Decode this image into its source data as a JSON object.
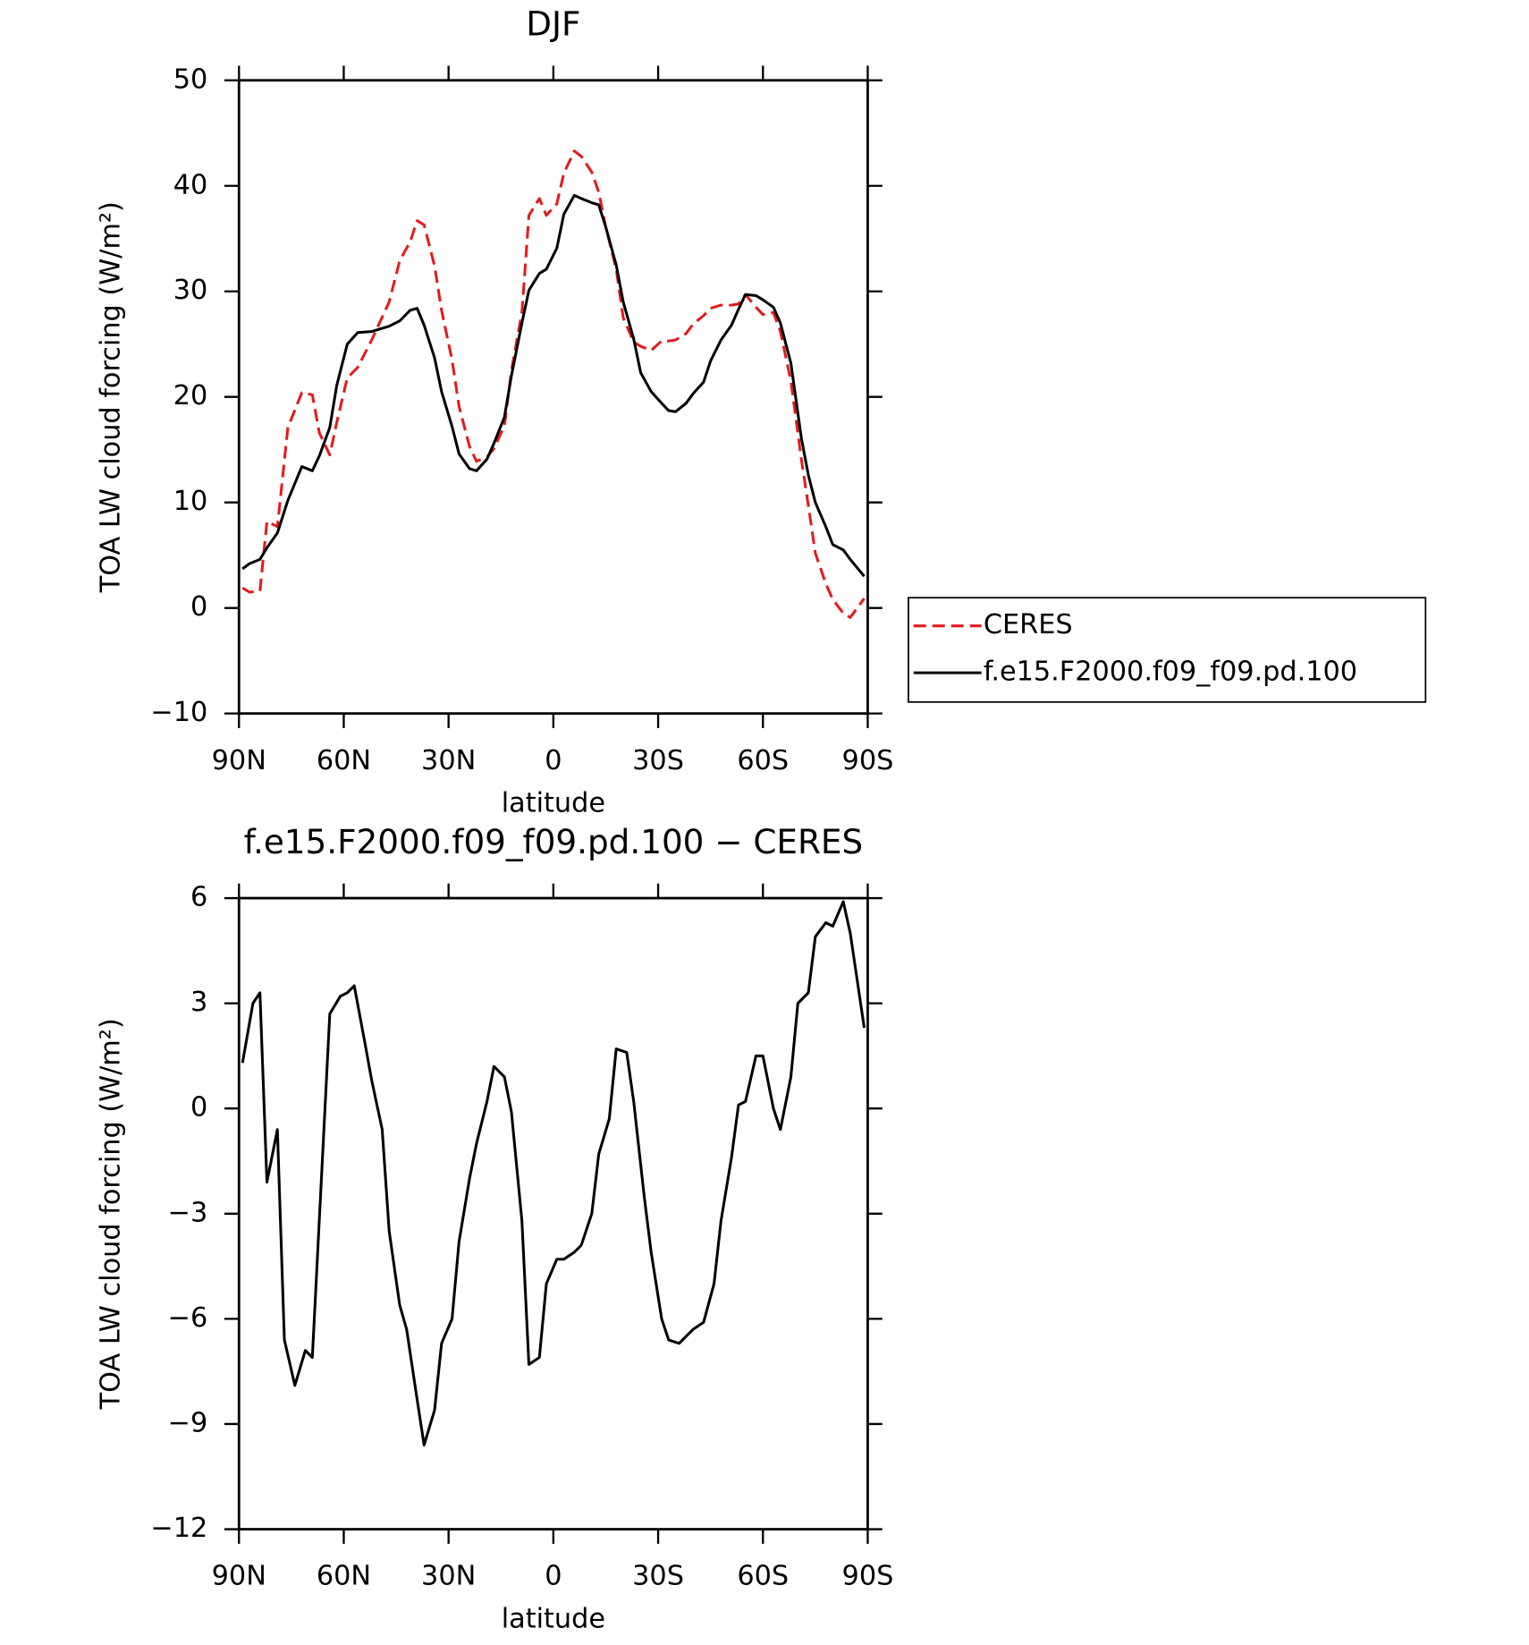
{
  "chart_data": [
    {
      "type": "line",
      "title": "DJF",
      "xlabel": "latitude",
      "ylabel": "TOA LW cloud forcing (W/m²)",
      "x": [
        89,
        87,
        84,
        82,
        79,
        76,
        72,
        69,
        67,
        64,
        62,
        59,
        56,
        52,
        47,
        44,
        41,
        39,
        37,
        34,
        32,
        29,
        27,
        24,
        22,
        19,
        17,
        14,
        12,
        9,
        7,
        4,
        2,
        -1,
        -3,
        -6,
        -8,
        -11,
        -13,
        -15,
        -18,
        -20,
        -23,
        -25,
        -28,
        -31,
        -33,
        -35,
        -38,
        -40,
        -43,
        -45,
        -48,
        -51,
        -53,
        -55,
        -58,
        -60,
        -63,
        -65,
        -68,
        -71,
        -73,
        -75,
        -78,
        -80,
        -83,
        -85,
        -89
      ],
      "series": [
        {
          "name": "CERES",
          "color": "#e41a1c",
          "dash": "dashed",
          "values": [
            1.9,
            1.5,
            1.6,
            8.2,
            7.7,
            17.1,
            20.4,
            20.2,
            16.6,
            14.5,
            17.6,
            21.8,
            22.8,
            25.4,
            29.0,
            32.9,
            34.7,
            36.7,
            36.3,
            32.4,
            28.2,
            23.5,
            19.1,
            15.3,
            13.9,
            14.3,
            15.1,
            17.3,
            22.5,
            28.0,
            37.2,
            38.8,
            37.2,
            38.3,
            41.2,
            43.3,
            42.8,
            41.3,
            39.4,
            36.1,
            32.1,
            27.5,
            25.2,
            24.8,
            24.4,
            25.3,
            25.3,
            25.4,
            26.0,
            26.9,
            27.7,
            28.4,
            28.7,
            28.7,
            28.8,
            29.7,
            28.5,
            27.8,
            28.0,
            26.2,
            21.5,
            14.1,
            9.7,
            5.2,
            2.3,
            0.8,
            -0.5,
            -0.9,
            0.9
          ]
        },
        {
          "name": "f.e15.F2000.f09_f09.pd.100",
          "color": "#000000",
          "dash": "solid",
          "values": [
            3.7,
            4.2,
            4.6,
            5.7,
            7.1,
            10.2,
            13.4,
            13.0,
            14.4,
            17.1,
            21.1,
            25.0,
            26.1,
            26.2,
            26.7,
            27.2,
            28.2,
            28.4,
            26.8,
            23.7,
            20.5,
            17.2,
            14.6,
            13.2,
            13.0,
            14.1,
            15.6,
            18.1,
            22.0,
            27.0,
            30.1,
            31.7,
            32.1,
            34.1,
            37.3,
            39.1,
            38.8,
            38.4,
            38.2,
            36.1,
            32.5,
            29.0,
            25.5,
            22.3,
            20.5,
            19.4,
            18.7,
            18.6,
            19.4,
            20.3,
            21.4,
            23.4,
            25.4,
            26.8,
            28.3,
            29.7,
            29.6,
            29.2,
            28.5,
            27.0,
            23.2,
            16.1,
            12.6,
            10.0,
            7.7,
            6.0,
            5.5,
            4.6,
            3.0
          ]
        }
      ],
      "xlim": [
        90,
        -90
      ],
      "xticks": [
        {
          "value": 90,
          "label": "90N"
        },
        {
          "value": 60,
          "label": "60N"
        },
        {
          "value": 30,
          "label": "30N"
        },
        0,
        {
          "value": -30,
          "label": "30S"
        },
        {
          "value": -60,
          "label": "60S"
        },
        {
          "value": -90,
          "label": "90S"
        }
      ],
      "ylim": [
        -10,
        50
      ],
      "yticks": [
        {
          "value": -10,
          "label": "−10"
        },
        0,
        10,
        20,
        30,
        40,
        50
      ],
      "legend": "right"
    },
    {
      "type": "line",
      "title": "f.e15.F2000.f09_f09.pd.100 − CERES",
      "xlabel": "latitude",
      "ylabel": "TOA LW cloud forcing (W/m²)",
      "x": [
        89,
        86,
        84,
        82,
        79,
        77,
        74,
        71,
        69,
        64,
        61,
        59,
        57,
        54,
        52,
        49,
        47,
        44,
        42,
        39,
        37,
        34,
        32,
        29,
        27,
        24,
        22,
        19,
        17,
        14,
        12,
        9,
        7,
        4,
        2,
        -1,
        -3,
        -6,
        -8,
        -11,
        -13,
        -16,
        -18,
        -21,
        -23,
        -26,
        -28,
        -31,
        -33,
        -36,
        -38,
        -40,
        -43,
        -46,
        -48,
        -51,
        -53,
        -55,
        -58,
        -60,
        -63,
        -65,
        -68,
        -70,
        -73,
        -75,
        -78,
        -80,
        -83,
        -85,
        -89
      ],
      "series": [
        {
          "color": "#000000",
          "dash": "solid",
          "values": [
            1.3,
            3.0,
            3.3,
            -2.1,
            -0.6,
            -6.6,
            -7.9,
            -6.9,
            -7.1,
            2.7,
            3.2,
            3.3,
            3.5,
            1.9,
            0.8,
            -0.6,
            -3.5,
            -5.6,
            -6.3,
            -8.3,
            -9.6,
            -8.6,
            -6.7,
            -6.0,
            -3.8,
            -2.0,
            -1.0,
            0.2,
            1.2,
            0.9,
            -0.1,
            -3.2,
            -7.3,
            -7.1,
            -5.0,
            -4.3,
            -4.3,
            -4.1,
            -3.9,
            -3.0,
            -1.3,
            -0.3,
            1.7,
            1.6,
            0.2,
            -2.5,
            -4.1,
            -6.0,
            -6.6,
            -6.7,
            -6.5,
            -6.3,
            -6.1,
            -5.0,
            -3.2,
            -1.4,
            0.1,
            0.2,
            1.5,
            1.5,
            0.0,
            -0.6,
            0.9,
            3.0,
            3.3,
            4.9,
            5.3,
            5.2,
            5.9,
            5.0,
            2.3
          ]
        }
      ],
      "xlim": [
        90,
        -90
      ],
      "xticks": [
        {
          "value": 90,
          "label": "90N"
        },
        {
          "value": 60,
          "label": "60N"
        },
        {
          "value": 30,
          "label": "30N"
        },
        0,
        {
          "value": -30,
          "label": "30S"
        },
        {
          "value": -60,
          "label": "60S"
        },
        {
          "value": -90,
          "label": "90S"
        }
      ],
      "ylim": [
        -12,
        6
      ],
      "yticks": [
        {
          "value": -12,
          "label": "−12"
        },
        {
          "value": -9,
          "label": "−9"
        },
        {
          "value": -6,
          "label": "−6"
        },
        {
          "value": -3,
          "label": "−3"
        },
        0,
        3,
        6
      ]
    }
  ]
}
